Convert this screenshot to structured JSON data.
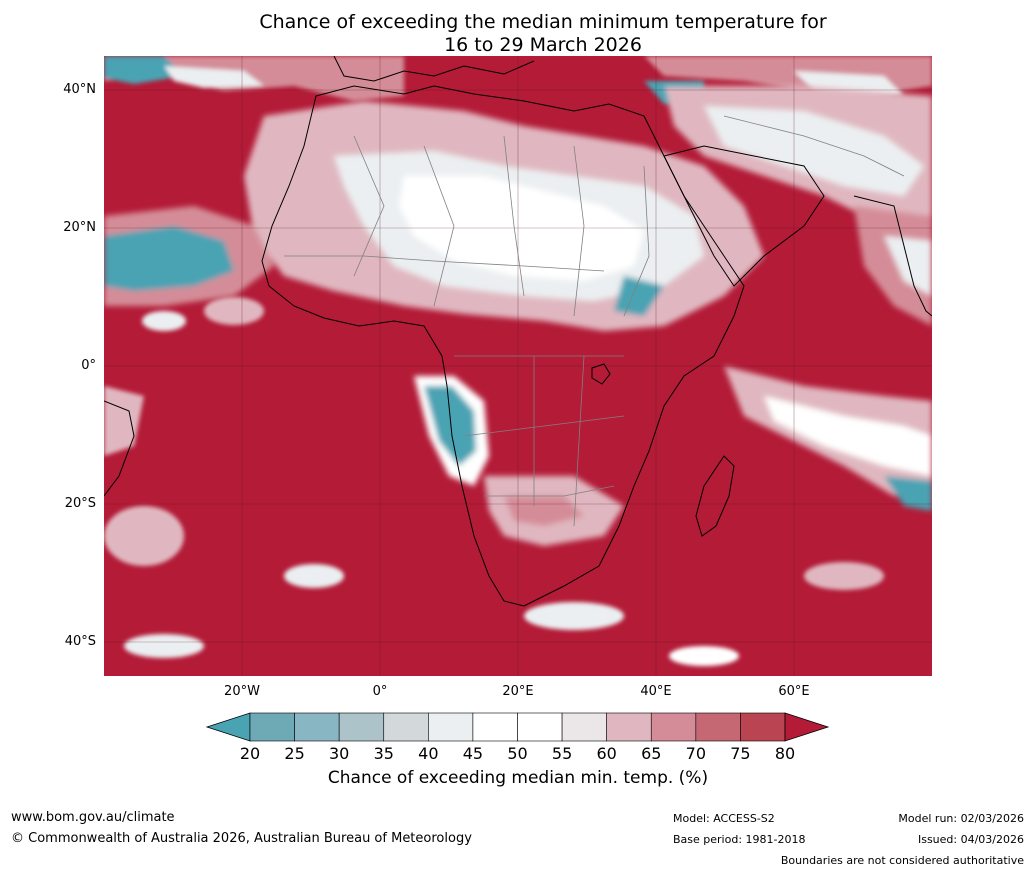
{
  "title": {
    "line1": "Chance of exceeding the median minimum temperature for",
    "line2": "16 to 29 March 2026"
  },
  "map": {
    "latitude_labels": [
      "40°N",
      "20°N",
      "0°",
      "20°S",
      "40°S"
    ],
    "longitude_labels": [
      "20°W",
      "0°",
      "20°E",
      "40°E",
      "60°E"
    ],
    "ocean_color": "#b31b37",
    "land_outline_color": "#000000",
    "border_color": "#808080"
  },
  "colorbar": {
    "ticks": [
      "20",
      "25",
      "30",
      "35",
      "40",
      "45",
      "50",
      "55",
      "60",
      "65",
      "70",
      "75",
      "80"
    ],
    "colors": [
      "#4aa3b3",
      "#6eaab5",
      "#88b7c3",
      "#abc3c9",
      "#d3d8db",
      "#ebeff1",
      "#ffffff",
      "#ffffff",
      "#ebe6e8",
      "#e0b7c0",
      "#d48d98",
      "#c56874",
      "#bb4453"
    ],
    "under_color": "#4aa3b3",
    "over_color": "#b31b37",
    "label": "Chance of exceeding median min. temp. (%)"
  },
  "footer": {
    "website": "www.bom.gov.au/climate",
    "copyright": "© Commonwealth of Australia 2026, Australian Bureau of Meteorology",
    "model": "Model: ACCESS-S2",
    "base_period": "Base period: 1981-2018",
    "model_run": "Model run: 02/03/2026",
    "issued": "Issued: 04/03/2026",
    "disclaimer": "Boundaries are not considered authoritative"
  }
}
